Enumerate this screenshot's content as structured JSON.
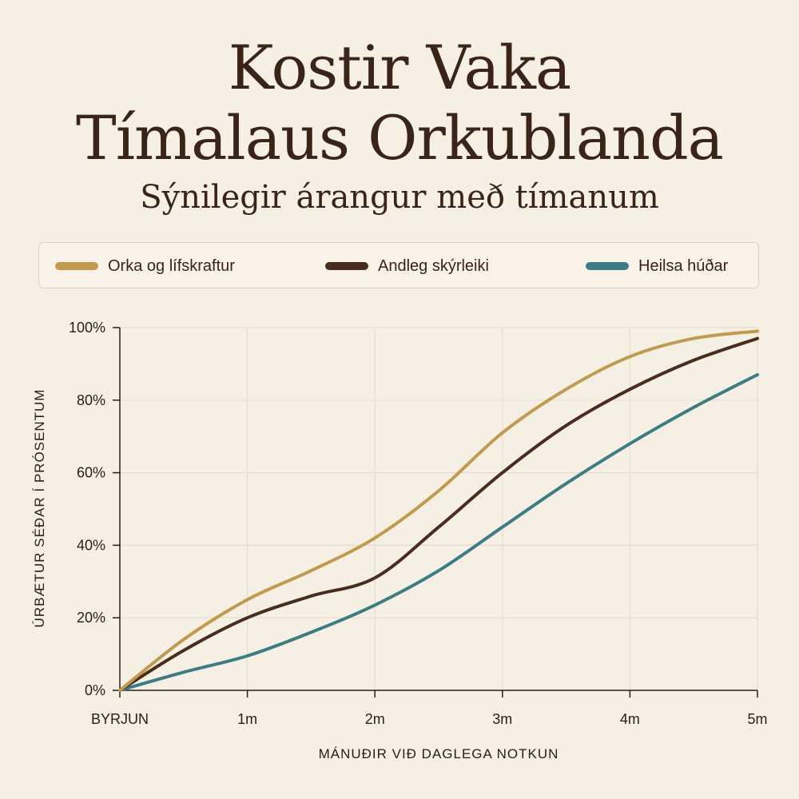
{
  "header": {
    "title_line1": "Kostir Vaka",
    "title_line2": "Tímalaus Orkublanda",
    "subtitle": "Sýnilegir árangur með tímanum"
  },
  "colors": {
    "background": "#f6efe3",
    "text": "#3a2418",
    "grid": "#e6ddd0",
    "axis": "#2a1d16"
  },
  "chart_data": {
    "type": "line",
    "title": "Kostir Vaka Tímalaus Orkublanda",
    "subtitle": "Sýnilegir árangur með tímanum",
    "xlabel": "MÁNUÐIR VIÐ DAGLEGA NOTKUN",
    "ylabel": "ÚRBÆTUR SÉÐAR Í PRÓSENTUM",
    "x": [
      0,
      0.5,
      1,
      1.5,
      2,
      2.5,
      3,
      3.5,
      4,
      4.5,
      5
    ],
    "x_tick_values": [
      0,
      1,
      2,
      3,
      4,
      5
    ],
    "x_tick_labels": [
      "BYRJUN",
      "1m",
      "2m",
      "3m",
      "4m",
      "5m"
    ],
    "y_tick_values": [
      0,
      20,
      40,
      60,
      80,
      100
    ],
    "y_tick_labels": [
      "0%",
      "20%",
      "40%",
      "60%",
      "80%",
      "100%"
    ],
    "xlim": [
      0,
      5
    ],
    "ylim": [
      0,
      100
    ],
    "grid": true,
    "legend_position": "top",
    "series": [
      {
        "name": "Orka og lífskraftur",
        "color": "#c09a4e",
        "values": [
          0,
          14,
          25,
          33,
          42,
          55,
          71,
          83,
          92,
          97,
          99
        ]
      },
      {
        "name": "Andleg skýrleiki",
        "color": "#4a2c1e",
        "values": [
          0,
          11,
          20,
          26,
          31,
          45,
          60,
          73,
          83,
          91,
          97
        ]
      },
      {
        "name": "Heilsa húðar",
        "color": "#3c7d85",
        "values": [
          0,
          5,
          9.5,
          16,
          23.5,
          33,
          45,
          57,
          68,
          78,
          87
        ]
      }
    ]
  }
}
